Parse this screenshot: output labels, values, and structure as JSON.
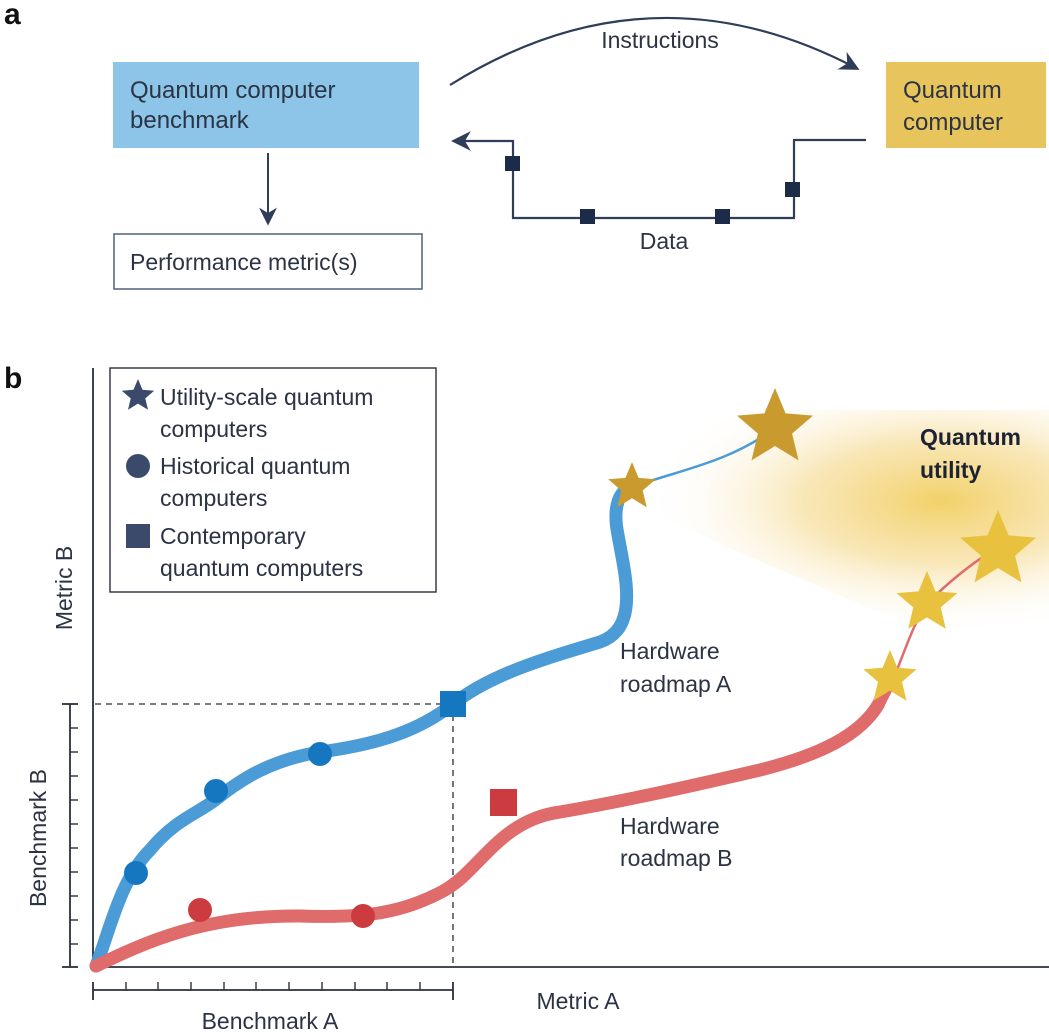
{
  "panel_a": {
    "label": "a",
    "benchmark_box": {
      "line1": "Quantum computer",
      "line2": "benchmark",
      "color": "#8cc5e8"
    },
    "quantum_computer_box": {
      "line1": "Quantum",
      "line2": "computer",
      "color": "#e8c55c"
    },
    "performance_box": {
      "text": "Performance metric(s)"
    },
    "instructions_label": "Instructions",
    "data_label": "Data",
    "arrow_color": "#2f3d58",
    "data_square_color": "#1b2b48"
  },
  "panel_b": {
    "label": "b",
    "legend": {
      "star": {
        "line1": "Utility-scale quantum",
        "line2": "computers",
        "icon": "star-icon"
      },
      "circle": {
        "line1": "Historical quantum",
        "line2": "computers",
        "icon": "circle-icon"
      },
      "square": {
        "line1": "Contemporary",
        "line2": "quantum computers",
        "icon": "square-icon"
      },
      "marker_color": "#3b4a6b"
    },
    "axes": {
      "y_label": "Metric B",
      "x_label": "Metric A",
      "inner_y_label": "Benchmark B",
      "inner_x_label": "Benchmark A"
    },
    "region": {
      "line1": "Quantum",
      "line2": "utility",
      "color": "#f0c94e"
    },
    "roadmap_a": {
      "line1": "Hardware",
      "line2": "roadmap A",
      "color": "#4a9bd6",
      "marker_color": "#1577bf",
      "star_color": "#c99a2e"
    },
    "roadmap_b": {
      "line1": "Hardware",
      "line2": "roadmap B",
      "color": "#e06b6b",
      "marker_color": "#cc3b3f",
      "star_color": "#e8c13e"
    }
  }
}
